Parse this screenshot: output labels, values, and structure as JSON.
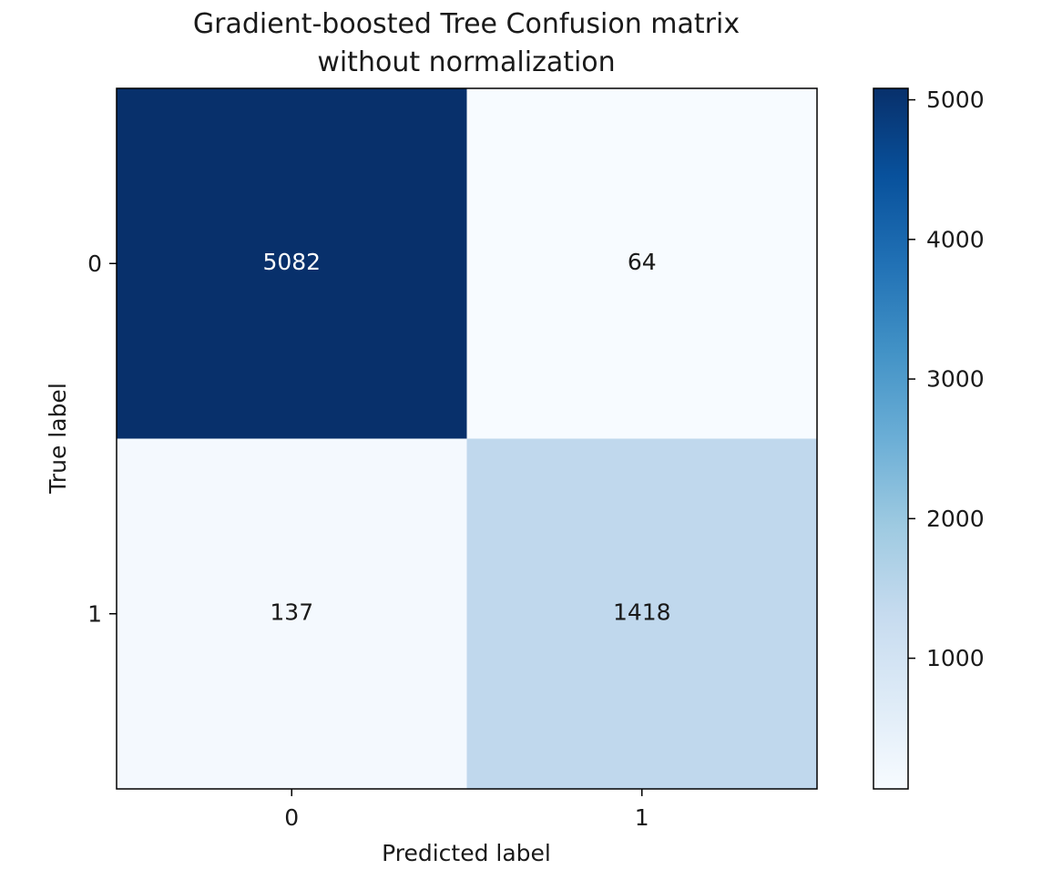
{
  "chart_data": {
    "type": "heatmap",
    "title_line1": "Gradient-boosted Tree Confusion matrix",
    "title_line2": "without normalization",
    "xlabel": "Predicted label",
    "ylabel": "True label",
    "x_categories": [
      "0",
      "1"
    ],
    "y_categories": [
      "0",
      "1"
    ],
    "matrix": [
      [
        5082,
        64
      ],
      [
        137,
        1418
      ]
    ],
    "colormap": "Blues",
    "colorbar": {
      "range": [
        64,
        5082
      ],
      "ticks": [
        1000,
        2000,
        3000,
        4000,
        5000
      ],
      "tick_labels": [
        "1000",
        "2000",
        "3000",
        "4000",
        "5000"
      ]
    },
    "text_color_dark_cell": "#ffffff",
    "text_color_light_cell": "#1a1a1a"
  }
}
